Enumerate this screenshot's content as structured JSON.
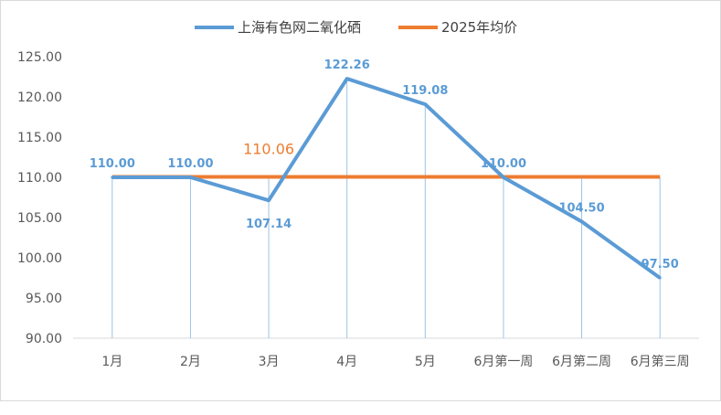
{
  "chart_data": {
    "type": "line",
    "categories": [
      "1月",
      "2月",
      "3月",
      "4月",
      "5月",
      "6月第一周",
      "6月第二周",
      "6月第三周"
    ],
    "series": [
      {
        "name": "上海有色网二氧化硒",
        "values": [
          110.0,
          110.0,
          107.14,
          122.26,
          119.08,
          110.0,
          104.5,
          97.5
        ],
        "labels": [
          "110.00",
          "110.00",
          "107.14",
          "122.26",
          "119.08",
          "110.00",
          "104.50",
          "97.50"
        ],
        "color": "#5b9bd5"
      },
      {
        "name": "2025年均价",
        "values": [
          110.06,
          110.06,
          110.06,
          110.06,
          110.06,
          110.06,
          110.06,
          110.06
        ],
        "label": "110.06",
        "color": "#ed7d31"
      }
    ],
    "ylim": [
      90,
      125
    ],
    "yticks": [
      "90.00",
      "95.00",
      "100.00",
      "105.00",
      "110.00",
      "115.00",
      "120.00",
      "125.00"
    ],
    "grid": false,
    "legend": "top-center",
    "drop_lines": true
  }
}
